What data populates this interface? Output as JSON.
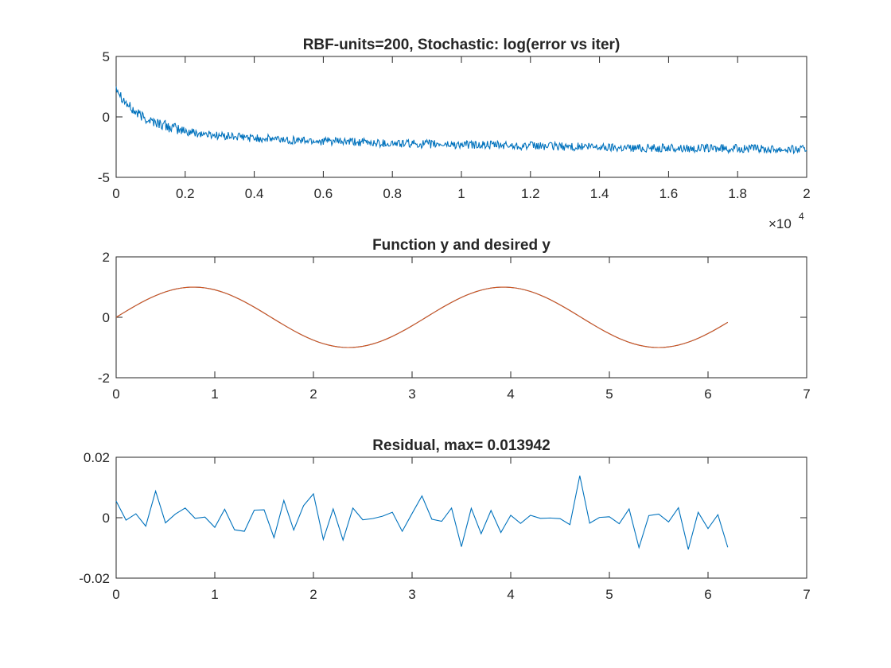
{
  "chart_data": [
    {
      "type": "line",
      "title": "RBF-units=200, Stochastic: log(error vs iter)",
      "xlabel": "",
      "ylabel": "",
      "xlim": [
        0,
        20000
      ],
      "ylim": [
        -5,
        5
      ],
      "x_ticks": [
        0,
        2000,
        4000,
        6000,
        8000,
        10000,
        12000,
        14000,
        16000,
        18000,
        20000
      ],
      "x_tick_labels": [
        "0",
        "0.2",
        "0.4",
        "0.6",
        "0.8",
        "1",
        "1.2",
        "1.4",
        "1.6",
        "1.8",
        "2"
      ],
      "x_exponent_label": "×10",
      "x_exponent": "4",
      "y_ticks": [
        -5,
        0,
        5
      ],
      "y_tick_labels": [
        "-5",
        "0",
        "5"
      ],
      "grid": false,
      "series": [
        {
          "color": "#0072BD",
          "x": [
            0,
            50,
            100,
            200,
            300,
            400,
            500,
            700,
            1000,
            1500,
            2000,
            2500,
            3000,
            4000,
            5000,
            6000,
            7000,
            8000,
            9000,
            10000,
            11000,
            12000,
            13000,
            14000,
            15000,
            16000,
            17000,
            18000,
            19000,
            20000
          ],
          "values": [
            2.6,
            2.3,
            2.0,
            1.5,
            1.1,
            0.8,
            0.5,
            0.1,
            -0.3,
            -0.8,
            -1.2,
            -1.4,
            -1.55,
            -1.75,
            -1.9,
            -2.0,
            -2.1,
            -2.2,
            -2.25,
            -2.3,
            -2.35,
            -2.4,
            -2.45,
            -2.5,
            -2.55,
            -2.58,
            -2.6,
            -2.62,
            -2.65,
            -2.68
          ],
          "noise_amplitude": 0.35
        }
      ]
    },
    {
      "type": "line",
      "title": "Function y and desired y",
      "xlabel": "",
      "ylabel": "",
      "xlim": [
        0,
        7
      ],
      "ylim": [
        -2,
        2
      ],
      "x_ticks": [
        0,
        1,
        2,
        3,
        4,
        5,
        6,
        7
      ],
      "x_tick_labels": [
        "0",
        "1",
        "2",
        "3",
        "4",
        "5",
        "6",
        "7"
      ],
      "y_ticks": [
        -2,
        0,
        2
      ],
      "y_tick_labels": [
        "-2",
        "0",
        "2"
      ],
      "grid": false,
      "series": [
        {
          "color": "#0072BD",
          "function": "sin(2*x)",
          "x_range": [
            0,
            6.2
          ],
          "step": 0.05
        },
        {
          "color": "#D95319",
          "function": "sin(2*x)",
          "x_range": [
            0,
            6.2
          ],
          "step": 0.05
        }
      ]
    },
    {
      "type": "line",
      "title": "Residual, max= 0.013942",
      "xlabel": "",
      "ylabel": "",
      "xlim": [
        0,
        7
      ],
      "ylim": [
        -0.02,
        0.02
      ],
      "x_ticks": [
        0,
        1,
        2,
        3,
        4,
        5,
        6,
        7
      ],
      "x_tick_labels": [
        "0",
        "1",
        "2",
        "3",
        "4",
        "5",
        "6",
        "7"
      ],
      "y_ticks": [
        -0.02,
        0,
        0.02
      ],
      "y_tick_labels": [
        "-0.02",
        "0",
        "0.02"
      ],
      "grid": false,
      "series": [
        {
          "color": "#0072BD",
          "x": [
            0,
            0.1,
            0.2,
            0.3,
            0.4,
            0.5,
            0.6,
            0.7,
            0.8,
            0.9,
            1.0,
            1.1,
            1.2,
            1.3,
            1.4,
            1.5,
            1.6,
            1.7,
            1.8,
            1.9,
            2.0,
            2.1,
            2.2,
            2.3,
            2.4,
            2.5,
            2.6,
            2.7,
            2.8,
            2.9,
            3.0,
            3.1,
            3.2,
            3.3,
            3.4,
            3.5,
            3.6,
            3.7,
            3.8,
            3.9,
            4.0,
            4.1,
            4.2,
            4.3,
            4.4,
            4.5,
            4.6,
            4.7,
            4.8,
            4.9,
            5.0,
            5.1,
            5.2,
            5.3,
            5.4,
            5.5,
            5.6,
            5.7,
            5.8,
            5.9,
            6.0,
            6.1,
            6.2
          ],
          "values": [
            0.0055,
            -0.0008,
            0.0013,
            -0.0028,
            0.0088,
            -0.0017,
            0.0012,
            0.0032,
            -0.0002,
            0.0002,
            -0.0032,
            0.0028,
            -0.004,
            -0.0045,
            0.0025,
            0.0026,
            -0.0066,
            0.0057,
            -0.0041,
            0.004,
            0.0079,
            -0.0072,
            0.0029,
            -0.0074,
            0.0032,
            -0.0007,
            -0.0003,
            0.0005,
            0.0018,
            -0.0045,
            0.0014,
            0.0072,
            -0.0005,
            -0.0012,
            0.0032,
            -0.0096,
            0.0031,
            -0.0053,
            0.0024,
            -0.0049,
            0.0008,
            -0.0019,
            0.0008,
            -0.0002,
            -0.0001,
            -0.0003,
            -0.0023,
            0.0139,
            -0.0018,
            0.0001,
            0.0003,
            -0.002,
            0.0029,
            -0.0099,
            0.0007,
            0.0012,
            -0.0014,
            0.0033,
            -0.0105,
            0.0018,
            -0.0036,
            0.001,
            -0.0098
          ]
        }
      ]
    }
  ]
}
